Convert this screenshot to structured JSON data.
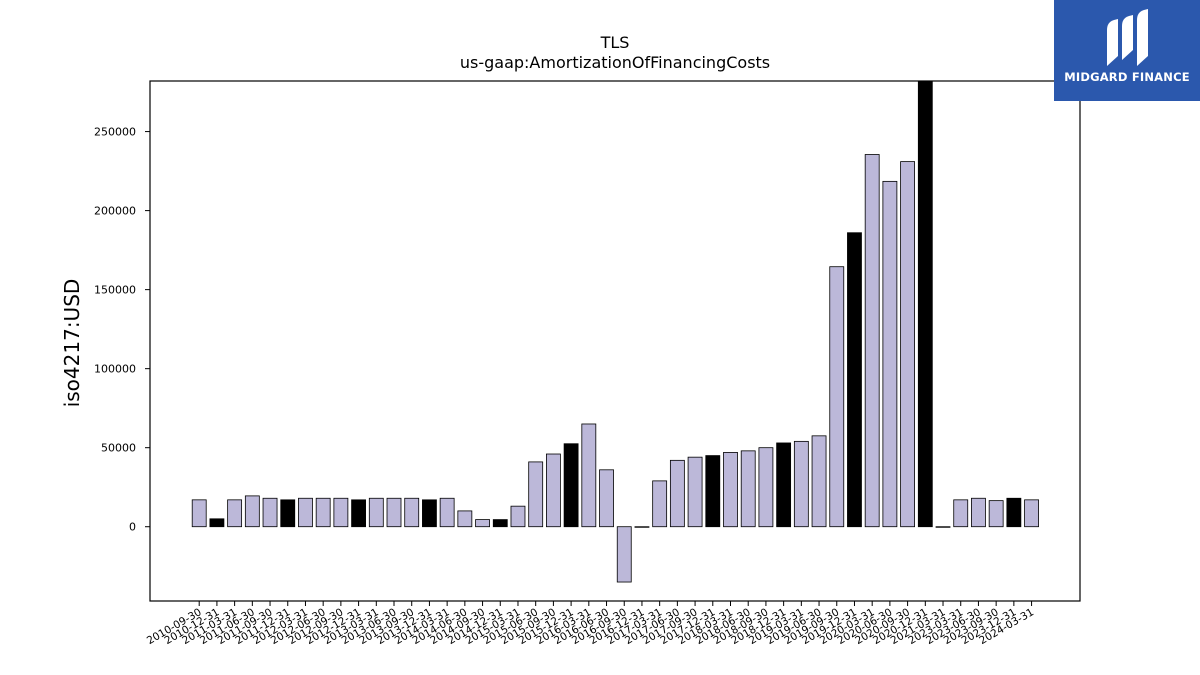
{
  "logo": {
    "text": "MIDGARD FINANCE"
  },
  "colors": {
    "bar": "#bcb8d9",
    "bar_highlight": "#000000",
    "bar_edge": "#000000",
    "logo_bg": "#2b58ad"
  },
  "chart_data": {
    "type": "bar",
    "title": "TLS",
    "subtitle": "us-gaap:AmortizationOfFinancingCosts",
    "xlabel": "",
    "ylabel": "iso4217:USD",
    "ylim": [
      -47000,
      282000
    ],
    "yticks": [
      0,
      50000,
      100000,
      150000,
      200000,
      250000
    ],
    "grid": false,
    "categories": [
      "2010-09-30",
      "2010-12-31",
      "2011-03-31",
      "2011-06-30",
      "2011-09-30",
      "2011-12-31",
      "2012-03-31",
      "2012-06-30",
      "2012-09-30",
      "2012-12-31",
      "2013-03-31",
      "2013-06-30",
      "2013-09-30",
      "2013-12-31",
      "2014-03-31",
      "2014-06-30",
      "2014-09-30",
      "2014-12-31",
      "2015-03-31",
      "2015-06-30",
      "2015-09-30",
      "2015-12-31",
      "2016-03-31",
      "2016-06-30",
      "2016-09-30",
      "2016-12-31",
      "2017-03-31",
      "2017-06-30",
      "2017-09-30",
      "2017-12-31",
      "2018-03-31",
      "2018-06-30",
      "2018-09-30",
      "2018-12-31",
      "2019-03-31",
      "2019-06-30",
      "2019-09-30",
      "2019-12-31",
      "2020-03-31",
      "2020-06-30",
      "2020-09-30",
      "2020-12-31",
      "2021-03-31",
      "2023-03-31",
      "2023-06-30",
      "2023-09-30",
      "2023-12-31",
      "2024-03-31"
    ],
    "values": [
      17000,
      5000,
      17000,
      19500,
      18000,
      17000,
      18000,
      18000,
      18000,
      17000,
      18000,
      18000,
      18000,
      17000,
      18000,
      10000,
      4500,
      4500,
      13000,
      41000,
      46000,
      52500,
      65000,
      36000,
      -35000,
      0,
      29000,
      42000,
      44000,
      45000,
      47000,
      48000,
      50000,
      53000,
      54000,
      57500,
      164500,
      186000,
      235500,
      218500,
      231000,
      282000,
      0,
      17000,
      18000,
      16500,
      18000,
      17000
    ],
    "highlight": [
      false,
      true,
      false,
      false,
      false,
      true,
      false,
      false,
      false,
      true,
      false,
      false,
      false,
      true,
      false,
      false,
      false,
      true,
      false,
      false,
      false,
      true,
      false,
      false,
      false,
      true,
      false,
      false,
      false,
      true,
      false,
      false,
      false,
      true,
      false,
      false,
      false,
      true,
      false,
      false,
      false,
      true,
      false,
      false,
      false,
      false,
      true,
      false
    ]
  }
}
